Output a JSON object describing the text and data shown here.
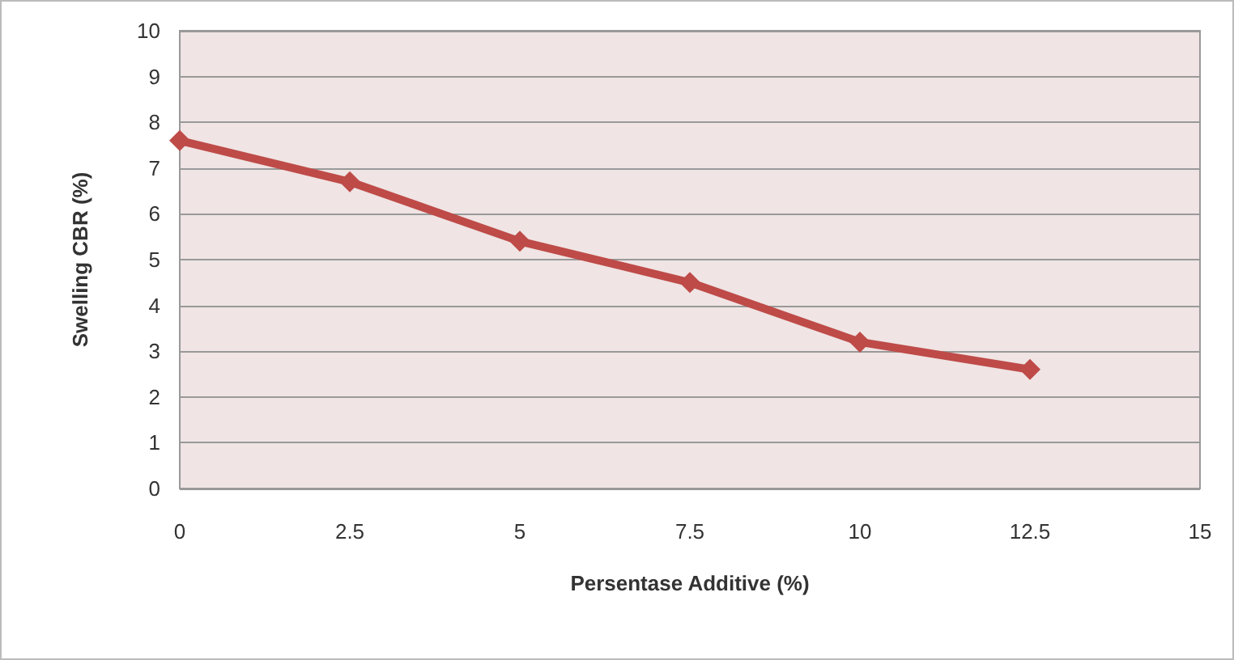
{
  "chart_data": {
    "type": "line",
    "xlabel": "Persentase Additive (%)",
    "ylabel": "Swelling CBR (%)",
    "x": [
      0,
      2.5,
      5,
      7.5,
      10,
      12.5
    ],
    "series": [
      {
        "color": "#be4b48",
        "values": [
          7.6,
          6.7,
          5.4,
          4.5,
          3.2,
          2.6
        ]
      }
    ],
    "xlim": [
      0,
      15
    ],
    "xticks": [
      0,
      2.5,
      5,
      7.5,
      10,
      12.5,
      15
    ],
    "ylim": [
      0,
      10
    ],
    "yticks": [
      0,
      1,
      2,
      3,
      4,
      5,
      6,
      7,
      8,
      9,
      10
    ],
    "grid": "y",
    "marker": "diamond",
    "line_style": "solid"
  }
}
